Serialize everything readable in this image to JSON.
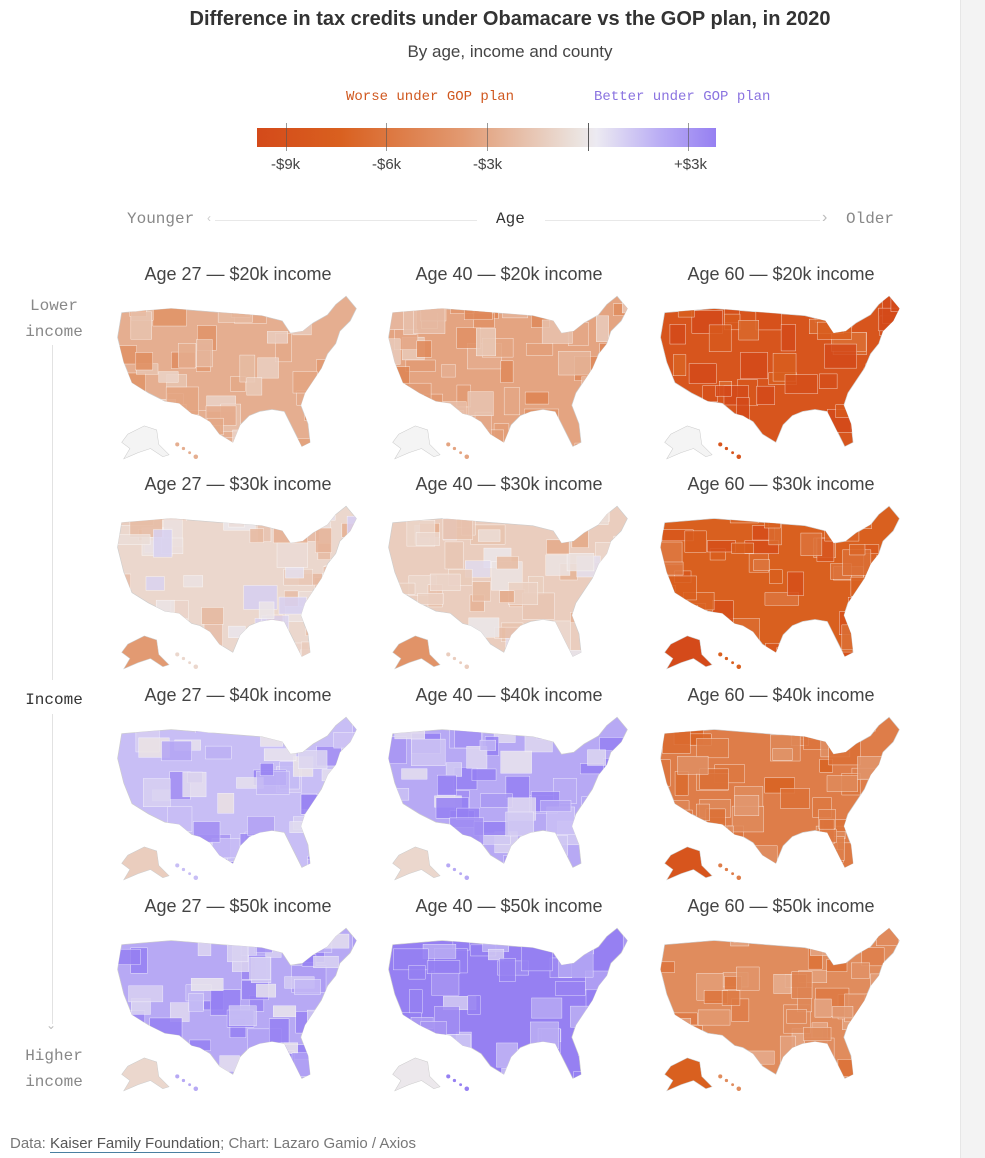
{
  "title": "Difference in tax credits under Obamacare vs the GOP plan, in 2020",
  "subtitle": "By age, income and county",
  "legend": {
    "worse_label": "Worse under GOP plan",
    "better_label": "Better under GOP plan",
    "ticks": [
      "-$9k",
      "-$6k",
      "-$3k",
      "+$3k"
    ],
    "tick_values_k": [
      -9,
      -6,
      -3,
      0,
      3
    ],
    "colors": {
      "worst": "#d44a1a",
      "mid_worse": "#e29a72",
      "neutral": "#ebe6e6",
      "better": "#9680f2"
    }
  },
  "age_axis": {
    "left": "Younger",
    "center": "Age",
    "right": "Older"
  },
  "income_axis": {
    "top": "Lower income",
    "center": "Income",
    "bottom": "Higher income"
  },
  "chart_data": {
    "type": "heatmap",
    "rows": [
      "$20k",
      "$30k",
      "$40k",
      "$50k"
    ],
    "columns": [
      "Age 27",
      "Age 40",
      "Age 60"
    ],
    "panels": [
      {
        "title": "Age 27 — $20k income",
        "typical_difference_k": -3
      },
      {
        "title": "Age 40 — $20k income",
        "typical_difference_k": -3.5
      },
      {
        "title": "Age 60 — $20k income",
        "typical_difference_k": -9
      },
      {
        "title": "Age 27 — $30k income",
        "typical_difference_k": -1
      },
      {
        "title": "Age 40 — $30k income",
        "typical_difference_k": -1.5
      },
      {
        "title": "Age 60 — $30k income",
        "typical_difference_k": -8
      },
      {
        "title": "Age 27 — $40k income",
        "typical_difference_k": 1.5
      },
      {
        "title": "Age 40 — $40k income",
        "typical_difference_k": 2
      },
      {
        "title": "Age 60 — $40k income",
        "typical_difference_k": -6
      },
      {
        "title": "Age 27 — $50k income",
        "typical_difference_k": 2
      },
      {
        "title": "Age 40 — $50k income",
        "typical_difference_k": 3
      },
      {
        "title": "Age 60 — $50k income",
        "typical_difference_k": -5
      }
    ]
  },
  "footer": {
    "prefix": "Data: ",
    "source_link": "Kaiser Family Foundation",
    "suffix": "; Chart: Lazaro Gamio / Axios"
  }
}
